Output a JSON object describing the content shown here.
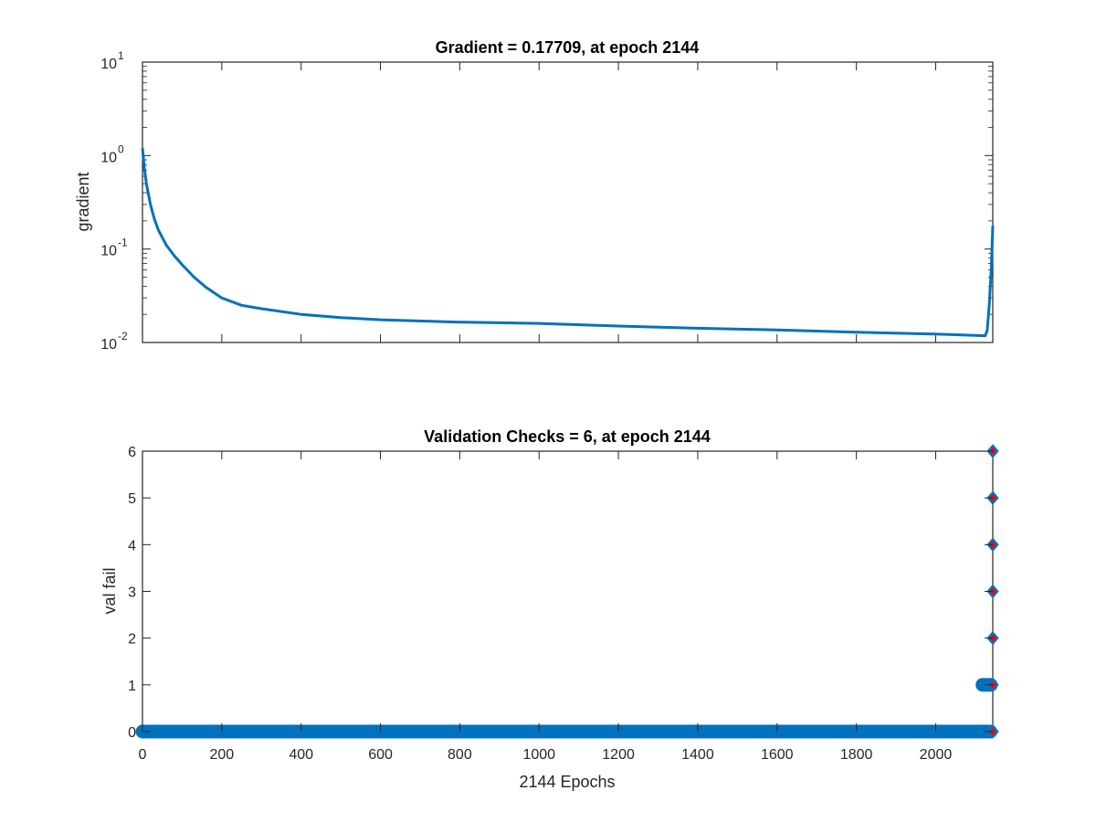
{
  "chart_data": [
    {
      "type": "line",
      "title": "Gradient = 0.17709, at epoch 2144",
      "xlabel": "",
      "ylabel": "gradient",
      "yscale": "log",
      "xlim": [
        0,
        2144
      ],
      "ylim": [
        0.01,
        10
      ],
      "y_ticks": [
        {
          "value": 0.01,
          "base": "10",
          "exp": "-2"
        },
        {
          "value": 0.1,
          "base": "10",
          "exp": "-1"
        },
        {
          "value": 1,
          "base": "10",
          "exp": "0"
        },
        {
          "value": 10,
          "base": "10",
          "exp": "1"
        }
      ],
      "x_ticks": [
        0,
        200,
        400,
        600,
        800,
        1000,
        1200,
        1400,
        1600,
        1800,
        2000
      ],
      "grid": false,
      "color": "#0072BD",
      "series": [
        {
          "x": [
            0,
            5,
            10,
            20,
            30,
            40,
            60,
            80,
            100,
            130,
            160,
            200,
            250,
            300,
            400,
            500,
            600,
            800,
            1000,
            1200,
            1400,
            1600,
            1800,
            2000,
            2100,
            2125,
            2130,
            2135,
            2140,
            2144
          ],
          "y": [
            1.2,
            0.72,
            0.5,
            0.3,
            0.21,
            0.16,
            0.11,
            0.085,
            0.068,
            0.05,
            0.039,
            0.03,
            0.025,
            0.023,
            0.02,
            0.0185,
            0.0175,
            0.0165,
            0.016,
            0.015,
            0.0142,
            0.0136,
            0.0129,
            0.0123,
            0.0119,
            0.0118,
            0.0135,
            0.025,
            0.06,
            0.17709
          ]
        }
      ]
    },
    {
      "type": "scatter",
      "title": "Validation Checks = 6, at epoch 2144",
      "xlabel": "2144 Epochs",
      "ylabel": "val fail",
      "xlim": [
        0,
        2144
      ],
      "ylim": [
        0,
        6
      ],
      "x_ticks": [
        0,
        200,
        400,
        600,
        800,
        1000,
        1200,
        1400,
        1600,
        1800,
        2000
      ],
      "y_ticks": [
        0,
        1,
        2,
        3,
        4,
        5,
        6
      ],
      "grid": false,
      "color": "#0072BD",
      "marker_fill": "#FF0000",
      "segments": [
        {
          "y": 0,
          "x_start": 0,
          "x_end": 2138
        },
        {
          "y": 1,
          "x_start": 2118,
          "x_end": 2139
        }
      ],
      "points": [
        {
          "x": 2144,
          "y": 0
        },
        {
          "x": 2144,
          "y": 1
        },
        {
          "x": 2144,
          "y": 2
        },
        {
          "x": 2144,
          "y": 3
        },
        {
          "x": 2144,
          "y": 4
        },
        {
          "x": 2144,
          "y": 5
        },
        {
          "x": 2144,
          "y": 6
        }
      ]
    }
  ]
}
